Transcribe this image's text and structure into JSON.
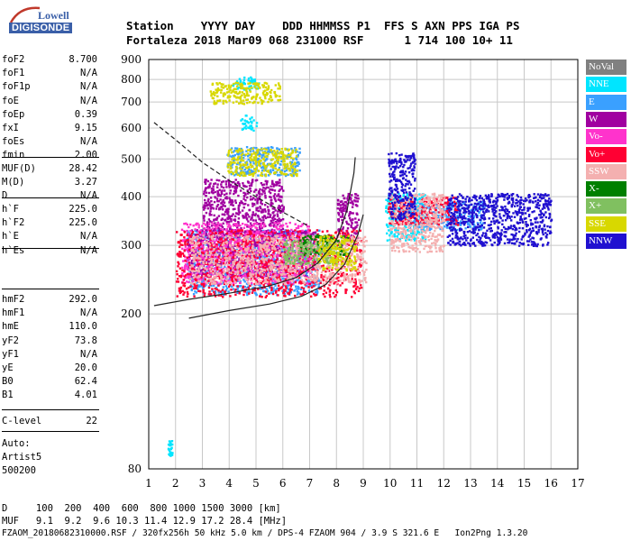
{
  "logo": {
    "line1": "Lowell",
    "line2": "DIGISONDE"
  },
  "header": {
    "line1": "Station    YYYY DAY    DDD HHMMSS P1  FFS S AXN PPS IGA PS",
    "line2": "Fortaleza 2018 Mar09 068 231000 RSF      1 714 100 10+ 11"
  },
  "params_group1": [
    {
      "label": "foF2",
      "value": "8.700"
    },
    {
      "label": "foF1",
      "value": "N/A"
    },
    {
      "label": "foF1p",
      "value": "N/A"
    },
    {
      "label": "foE",
      "value": "N/A"
    },
    {
      "label": "foEp",
      "value": "0.39"
    },
    {
      "label": "fxI",
      "value": "9.15"
    },
    {
      "label": "foEs",
      "value": "N/A"
    },
    {
      "label": "fmin",
      "value": "2.00"
    }
  ],
  "params_group2": [
    {
      "label": "MUF(D)",
      "value": "28.42"
    },
    {
      "label": "M(D)",
      "value": "3.27"
    },
    {
      "label": "D",
      "value": "N/A"
    }
  ],
  "params_group3": [
    {
      "label": "h`F",
      "value": "225.0"
    },
    {
      "label": "h`F2",
      "value": "225.0"
    },
    {
      "label": "h`E",
      "value": "N/A"
    },
    {
      "label": "h`Es",
      "value": "N/A"
    }
  ],
  "params_group4": [
    {
      "label": "hmF2",
      "value": "292.0"
    },
    {
      "label": "hmF1",
      "value": "N/A"
    },
    {
      "label": "hmE",
      "value": "110.0"
    },
    {
      "label": "yF2",
      "value": "73.8"
    },
    {
      "label": "yF1",
      "value": "N/A"
    },
    {
      "label": "yE",
      "value": "20.0"
    },
    {
      "label": "B0",
      "value": "62.4"
    },
    {
      "label": "B1",
      "value": "4.01"
    }
  ],
  "params_group5": [
    {
      "label": "C-level",
      "value": "22"
    }
  ],
  "autoscaling": {
    "line1": "Auto:",
    "line2": "Artist5",
    "line3": "500200"
  },
  "legend": [
    {
      "label": "NoVal",
      "color": "#808080"
    },
    {
      "label": "NNE",
      "color": "#00e5ff"
    },
    {
      "label": "E",
      "color": "#3aa0ff"
    },
    {
      "label": "W",
      "color": "#a000a0"
    },
    {
      "label": "Vo-",
      "color": "#ff33cc"
    },
    {
      "label": "Vo+",
      "color": "#ff0033"
    },
    {
      "label": "SSW",
      "color": "#f4b0b0"
    },
    {
      "label": "X-",
      "color": "#008000"
    },
    {
      "label": "X+",
      "color": "#80c060"
    },
    {
      "label": "SSE",
      "color": "#d8d800"
    },
    {
      "label": "NNW",
      "color": "#2010d0"
    }
  ],
  "bottom": {
    "line1": "D     100  200  400  600  800 1000 1500 3000 [km]",
    "line2": "MUF   9.1  9.2  9.6 10.3 11.4 12.9 17.2 28.4 [MHz]",
    "line3": "FZAOM_20180682310000.RSF / 320fx256h 50 kHz 5.0 km / DPS-4 FZAOM 904 / 3.9 S 321.6 E   Ion2Png 1.3.20"
  },
  "chart_data": {
    "type": "scatter",
    "title": "",
    "xlabel": "",
    "ylabel": "",
    "xlim": [
      1,
      17
    ],
    "ylim": [
      80,
      900
    ],
    "x_ticks": [
      1,
      2,
      3,
      4,
      5,
      6,
      7,
      8,
      9,
      10,
      11,
      12,
      13,
      14,
      15,
      16,
      17
    ],
    "y_ticks": [
      80,
      200,
      300,
      400,
      500,
      600,
      700,
      800,
      900
    ],
    "y_scale": "log",
    "grid": true,
    "legend_position": "right",
    "series": [
      {
        "name": "NNE",
        "color": "#00e5ff",
        "regions": [
          {
            "x": [
              4.1,
              5.1
            ],
            "y": [
              755,
              815
            ]
          },
          {
            "x": [
              4.4,
              5.0
            ],
            "y": [
              595,
              650
            ]
          },
          {
            "x": [
              9.8,
              11.3
            ],
            "y": [
              310,
              410
            ]
          },
          {
            "x": [
              1.7,
              1.85
            ],
            "y": [
              86,
              95
            ]
          }
        ]
      },
      {
        "name": "E",
        "color": "#3aa0ff",
        "regions": [
          {
            "x": [
              2.4,
              7.4
            ],
            "y": [
              225,
              330
            ]
          },
          {
            "x": [
              10.6,
              13.5
            ],
            "y": [
              330,
              390
            ]
          },
          {
            "x": [
              3.9,
              6.6
            ],
            "y": [
              455,
              540
            ]
          }
        ]
      },
      {
        "name": "W",
        "color": "#a000a0",
        "regions": [
          {
            "x": [
              3.0,
              6.0
            ],
            "y": [
              320,
              445
            ]
          },
          {
            "x": [
              2.4,
              7.2
            ],
            "y": [
              250,
              330
            ]
          },
          {
            "x": [
              8.0,
              8.8
            ],
            "y": [
              300,
              410
            ]
          }
        ]
      },
      {
        "name": "Vo-",
        "color": "#ff33cc",
        "regions": [
          {
            "x": [
              2.2,
              7.0
            ],
            "y": [
              240,
              345
            ]
          }
        ]
      },
      {
        "name": "Vo+",
        "color": "#ff0033",
        "regions": [
          {
            "x": [
              2.0,
              8.9
            ],
            "y": [
              222,
              330
            ]
          },
          {
            "x": [
              9.9,
              12.5
            ],
            "y": [
              340,
              400
            ]
          }
        ]
      },
      {
        "name": "SSW",
        "color": "#f4b0b0",
        "regions": [
          {
            "x": [
              2.5,
              9.1
            ],
            "y": [
              240,
              320
            ]
          },
          {
            "x": [
              10.0,
              12.0
            ],
            "y": [
              290,
              410
            ]
          }
        ]
      },
      {
        "name": "X-",
        "color": "#008000",
        "regions": [
          {
            "x": [
              6.6,
              8.4
            ],
            "y": [
              285,
              320
            ]
          }
        ]
      },
      {
        "name": "X+",
        "color": "#80c060",
        "regions": [
          {
            "x": [
              6.0,
              8.0
            ],
            "y": [
              270,
              310
            ]
          }
        ]
      },
      {
        "name": "SSE",
        "color": "#d8d800",
        "regions": [
          {
            "x": [
              3.2,
              5.9
            ],
            "y": [
              695,
              790
            ]
          },
          {
            "x": [
              3.9,
              6.5
            ],
            "y": [
              455,
              535
            ]
          },
          {
            "x": [
              7.3,
              8.7
            ],
            "y": [
              260,
              320
            ]
          }
        ]
      },
      {
        "name": "NNW",
        "color": "#2010d0",
        "regions": [
          {
            "x": [
              9.9,
              10.9
            ],
            "y": [
              350,
              520
            ]
          },
          {
            "x": [
              12.1,
              16.0
            ],
            "y": [
              300,
              410
            ]
          }
        ]
      }
    ],
    "profile_curves": [
      {
        "style": "dashed",
        "points": [
          [
            1.2,
            620
          ],
          [
            2.0,
            560
          ],
          [
            3.0,
            490
          ],
          [
            4.0,
            440
          ],
          [
            5.0,
            400
          ],
          [
            6.0,
            365
          ],
          [
            7.0,
            335
          ]
        ]
      },
      {
        "style": "solid",
        "points": [
          [
            1.2,
            210
          ],
          [
            2.5,
            218
          ],
          [
            4.0,
            226
          ],
          [
            5.5,
            236
          ],
          [
            6.5,
            248
          ],
          [
            7.3,
            270
          ],
          [
            8.0,
            310
          ],
          [
            8.4,
            370
          ],
          [
            8.65,
            460
          ],
          [
            8.7,
            505
          ]
        ]
      },
      {
        "style": "solid",
        "points": [
          [
            2.5,
            195
          ],
          [
            4.0,
            204
          ],
          [
            5.5,
            212
          ],
          [
            6.7,
            222
          ],
          [
            7.6,
            238
          ],
          [
            8.3,
            268
          ],
          [
            8.8,
            320
          ],
          [
            9.0,
            360
          ]
        ]
      }
    ]
  }
}
